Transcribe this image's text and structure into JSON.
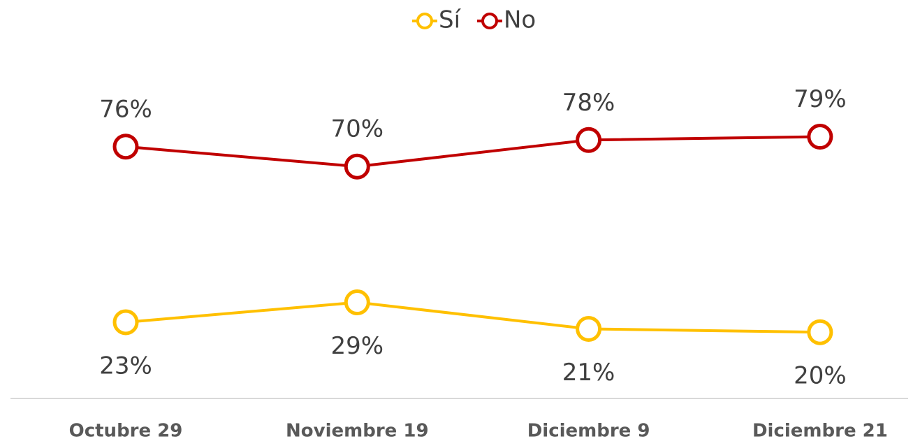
{
  "chart_data": {
    "type": "line",
    "categories": [
      "Octubre 29",
      "Noviembre 19",
      "Diciembre 9",
      "Diciembre 21"
    ],
    "series": [
      {
        "name": "Sí",
        "color": "#ffc000",
        "values": [
          23,
          29,
          21,
          20
        ],
        "value_labels": [
          "23%",
          "29%",
          "21%",
          "20%"
        ]
      },
      {
        "name": "No",
        "color": "#c00000",
        "values": [
          76,
          70,
          78,
          79
        ],
        "value_labels": [
          "76%",
          "70%",
          "78%",
          "79%"
        ]
      }
    ],
    "legend": "top"
  }
}
